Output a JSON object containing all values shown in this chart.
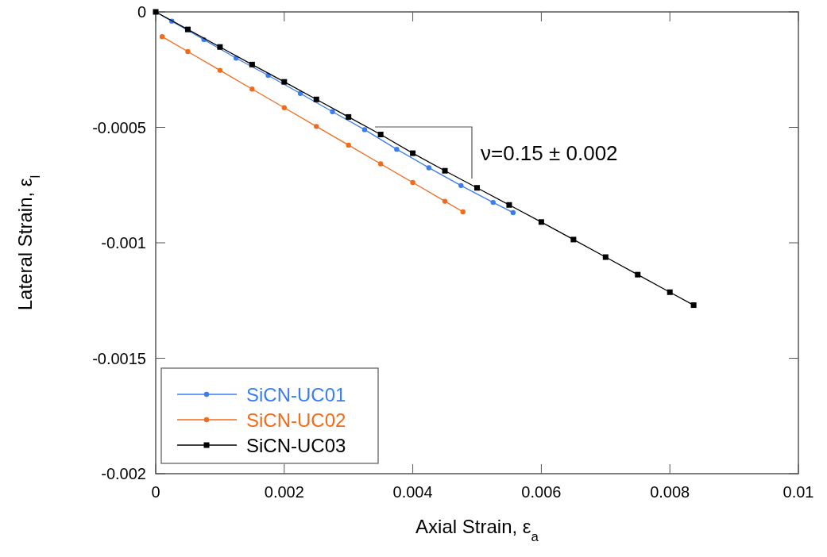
{
  "chart_data": {
    "type": "line",
    "xlabel": "Axial Strain, ε$_{a}$",
    "ylabel": "Lateral Strain, ε$_{l}$",
    "xlim": [
      0,
      0.01
    ],
    "xticks": [
      0,
      0.002,
      0.004,
      0.006,
      0.008,
      0.01
    ],
    "ylim": [
      -0.002,
      0
    ],
    "yticks": [
      -0.002,
      -0.0015,
      -0.001,
      -0.0005,
      0
    ],
    "grid": false,
    "legend": "bottom left",
    "line_style": "solid",
    "annotations": [
      "ν=0.15 ± 0.002"
    ],
    "series": [
      {
        "name": "SiCN-UC01",
        "color": "#3a7df0",
        "marker": "circle",
        "x": [
          0,
          0.00025,
          0.00075,
          0.00125,
          0.00175,
          0.00225,
          0.00275,
          0.00325,
          0.00375,
          0.00425,
          0.00475,
          0.00525,
          0.00556
        ],
        "values": [
          0,
          -4e-05,
          -0.00012,
          -0.0002,
          -0.000275,
          -0.000353,
          -0.000432,
          -0.00051,
          -0.000595,
          -0.000675,
          -0.000752,
          -0.000825,
          -0.000869
        ]
      },
      {
        "name": "SiCN-UC02",
        "color": "#f26b1d",
        "marker": "circle",
        "x": [
          0.0001,
          0.0005,
          0.001,
          0.0015,
          0.002,
          0.0025,
          0.003,
          0.0035,
          0.004,
          0.0045,
          0.00478
        ],
        "values": [
          -0.000107,
          -0.000172,
          -0.000253,
          -0.000334,
          -0.000415,
          -0.000496,
          -0.000577,
          -0.000658,
          -0.000739,
          -0.00082,
          -0.000866
        ]
      },
      {
        "name": "SiCN-UC03",
        "color": "#000000",
        "marker": "square",
        "x": [
          0,
          0.0005,
          0.001,
          0.0015,
          0.002,
          0.0025,
          0.003,
          0.0035,
          0.004,
          0.0045,
          0.005,
          0.0055,
          0.006,
          0.0065,
          0.007,
          0.0075,
          0.008,
          0.00837
        ],
        "values": [
          0,
          -7.6e-05,
          -0.000152,
          -0.000228,
          -0.000303,
          -0.000379,
          -0.000455,
          -0.000531,
          -0.000612,
          -0.000688,
          -0.000762,
          -0.000836,
          -0.00091,
          -0.000986,
          -0.001062,
          -0.001138,
          -0.001214,
          -0.00127
        ]
      }
    ]
  }
}
